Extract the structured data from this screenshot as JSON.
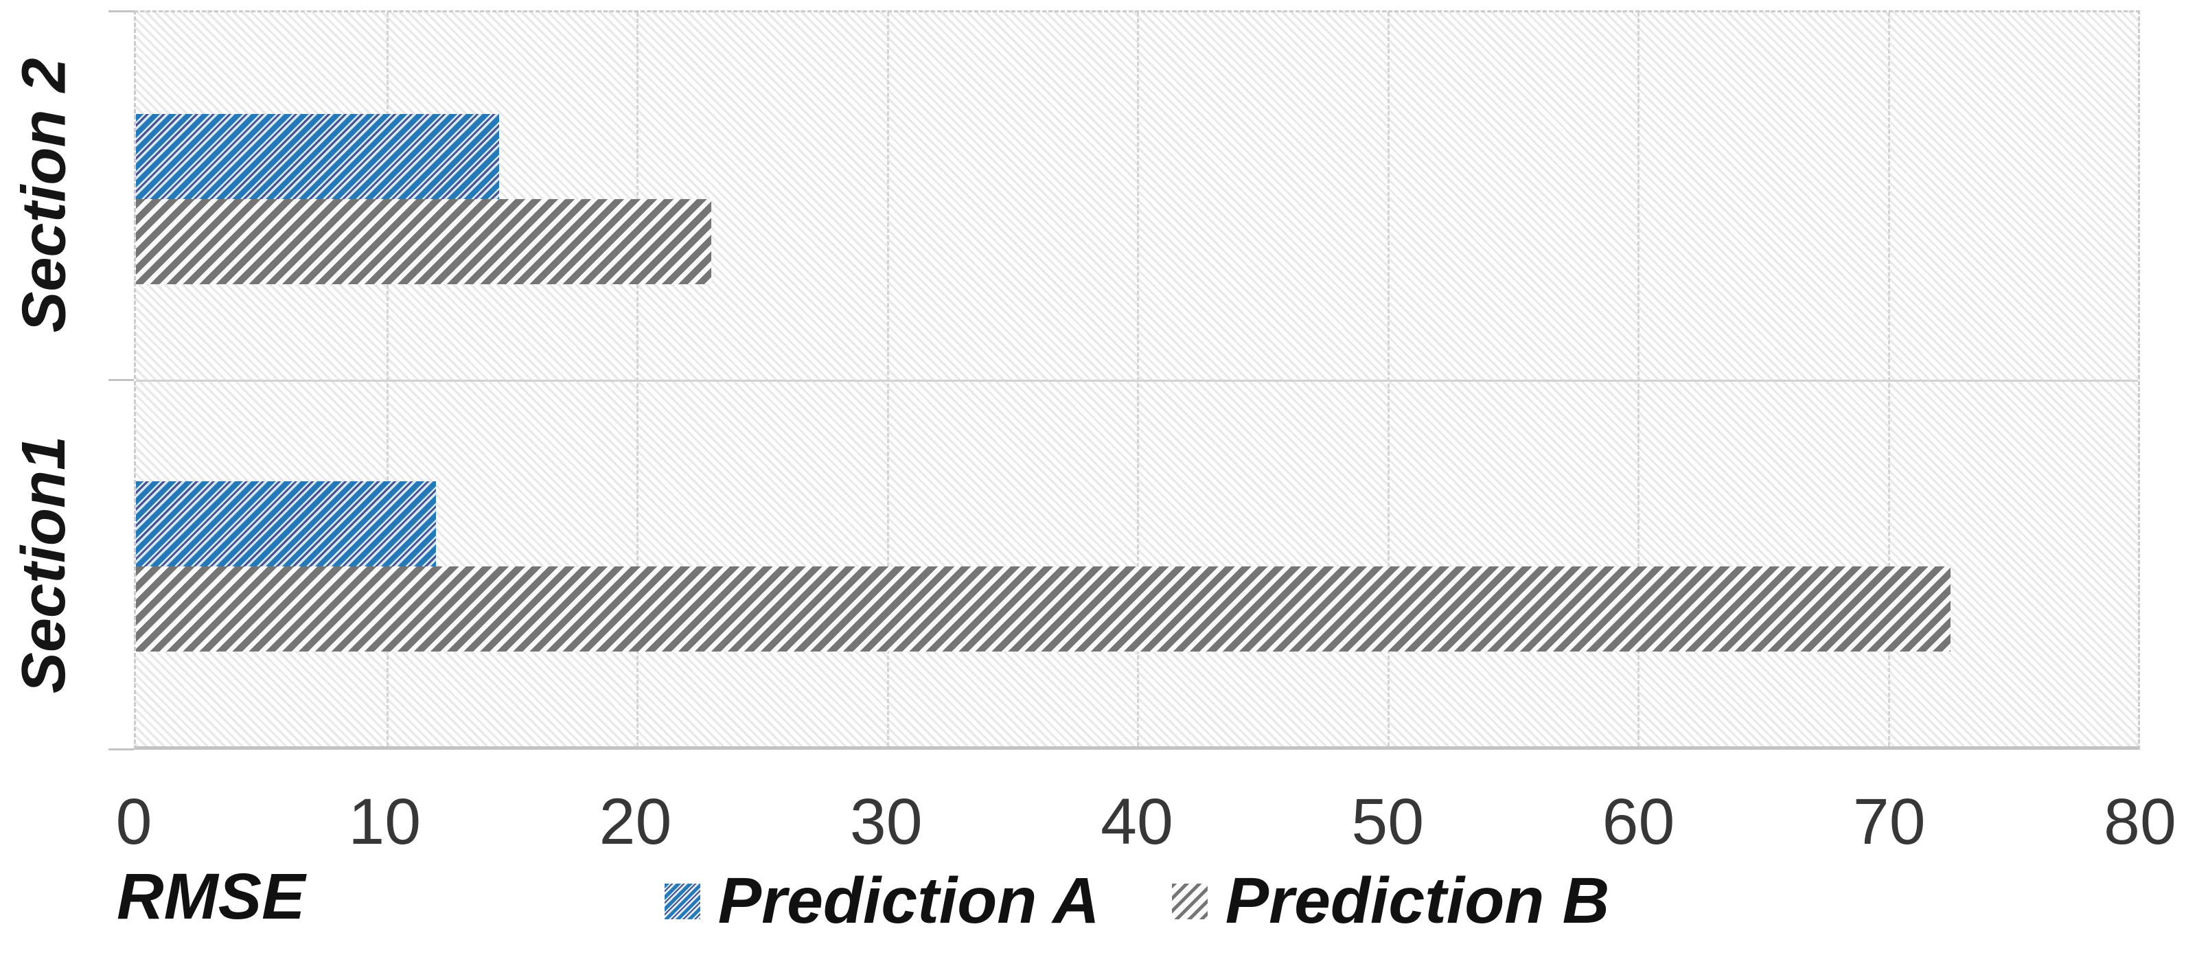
{
  "chart_data": {
    "type": "bar",
    "orientation": "horizontal",
    "title": "",
    "xlabel": "RMSE",
    "ylabel": "",
    "categories": [
      "Section 2",
      "Section1"
    ],
    "series": [
      {
        "name": "Prediction A",
        "values": [
          14.5,
          12
        ],
        "color": "#2579B6",
        "pattern": "upward-diagonal-hatch"
      },
      {
        "name": "Prediction B",
        "values": [
          23,
          72.5
        ],
        "color": "#757575",
        "pattern": "upward-diagonal-hatch"
      }
    ],
    "xlim": [
      0,
      80
    ],
    "x_ticks": [
      0,
      10,
      20,
      30,
      40,
      50,
      60,
      70,
      80
    ],
    "grid": true,
    "gridline_style": "dashed-light-gray",
    "plot_background": "light-diagonal-hatch",
    "legend_position": "bottom-center",
    "accent_colors": {
      "series_a_blue": "#2579B6",
      "series_a_navy": "#45548E",
      "series_b_gray": "#757575",
      "grid_gray": "#D2D2D2"
    }
  }
}
